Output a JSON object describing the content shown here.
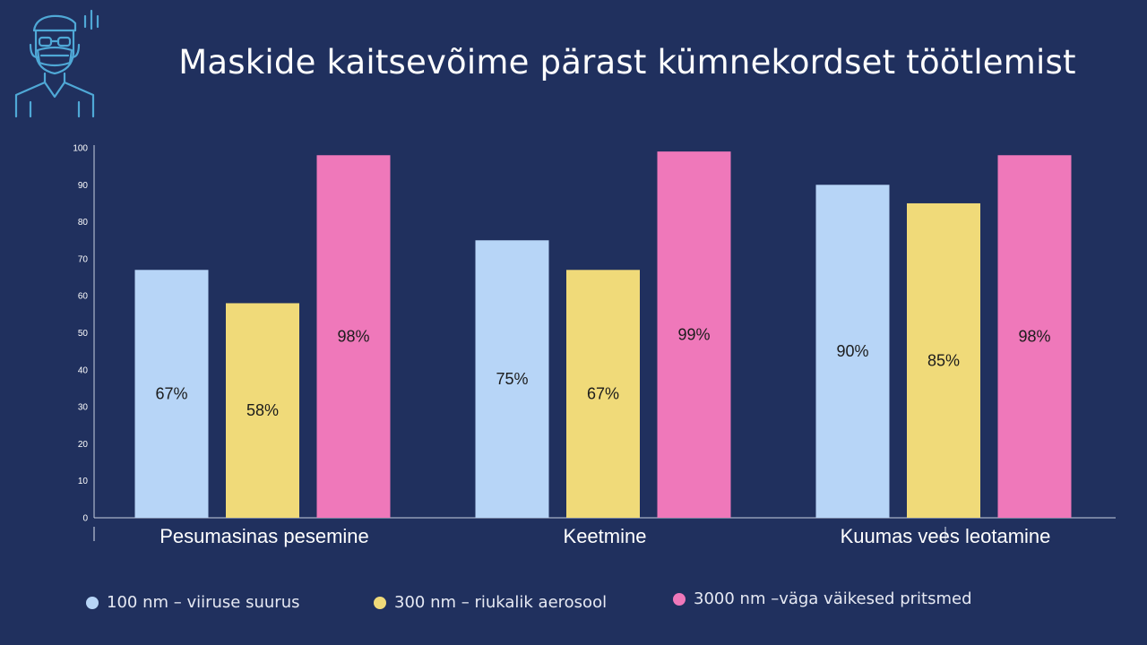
{
  "title": "Maskide kaitsevõime pärast kümnekordset töötlemist",
  "icon": "mask-person-icon",
  "colors": {
    "background": "#20305e",
    "series": [
      "#b7d5f7",
      "#f0da79",
      "#ef78ba"
    ],
    "axis": "#c9cfe0",
    "icon": "#4fa8d6"
  },
  "chart_data": {
    "type": "bar",
    "title": "Maskide kaitsevõime pärast kümnekordset töötlemist",
    "categories": [
      "Pesumasinas pesemine",
      "Keetmine",
      "Kuumas vees leotamine"
    ],
    "series": [
      {
        "name": "100 nm – viiruse suurus",
        "values": [
          67,
          75,
          90
        ],
        "labels": [
          "67%",
          "75%",
          "90%"
        ]
      },
      {
        "name": "300 nm – riukalik aerosool",
        "values": [
          58,
          67,
          85
        ],
        "labels": [
          "58%",
          "67%",
          "85%"
        ]
      },
      {
        "name": "3000 nm –väga väikesed pritsmed",
        "values": [
          98,
          99,
          98
        ],
        "labels": [
          "98%",
          "99%",
          "98%"
        ]
      }
    ],
    "yticks": [
      "0",
      "10",
      "20",
      "30",
      "40",
      "50",
      "60",
      "70",
      "80",
      "90",
      "100"
    ],
    "ylim": [
      0,
      100
    ],
    "xlabel": "",
    "ylabel": "",
    "grid": false,
    "legend_position": "bottom"
  }
}
